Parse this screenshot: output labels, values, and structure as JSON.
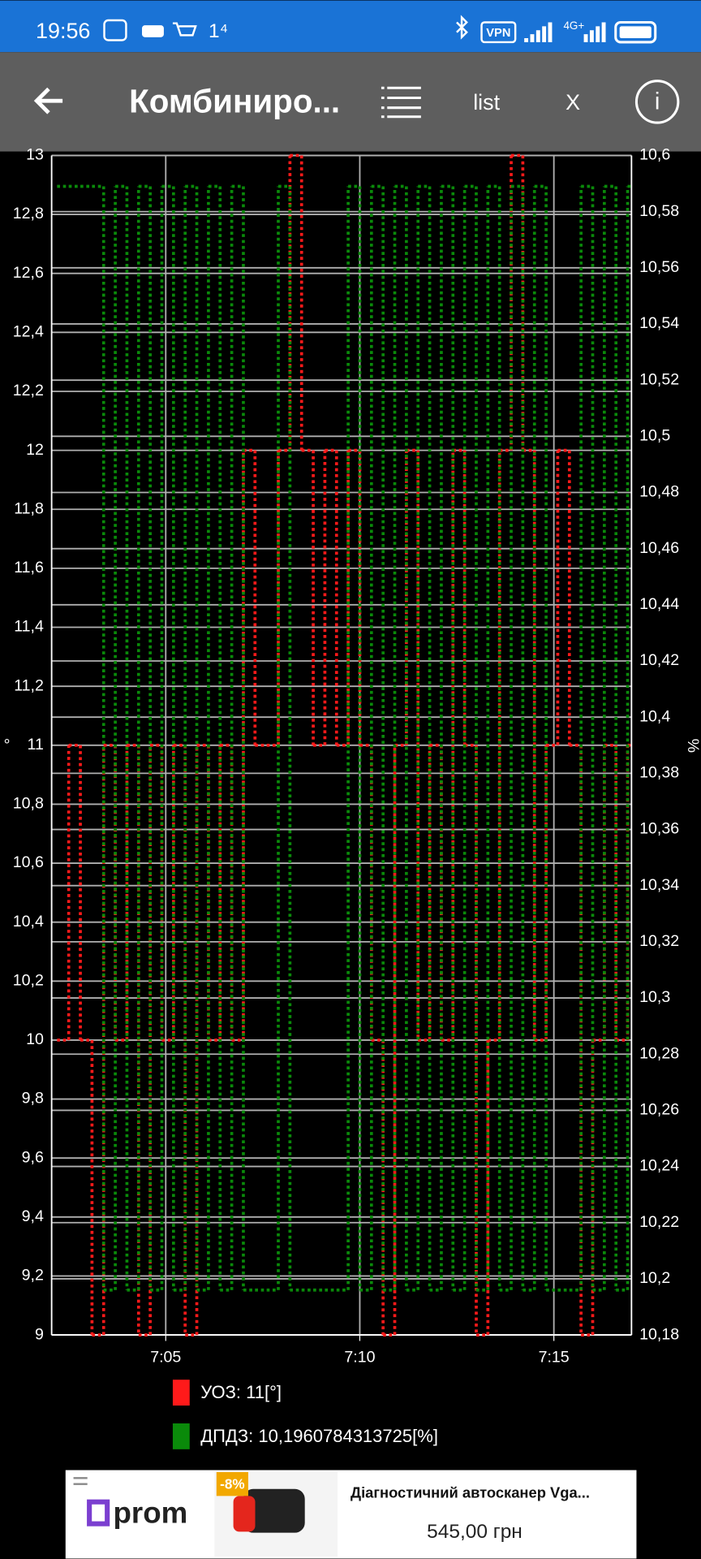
{
  "status_bar": {
    "time": "19:56",
    "notification": "1⁴",
    "vpn": "VPN",
    "network": "4G+"
  },
  "toolbar": {
    "title": "Комбиниро...",
    "list": "list",
    "close": "X",
    "info": "i"
  },
  "ad": {
    "brand": "prom",
    "discount": "-8%",
    "product": "Діагностичний автосканер Vga...",
    "price": "545,00 грн"
  },
  "chart_data": {
    "type": "line",
    "ylabel": "°",
    "y2label": "%",
    "grid": true,
    "x": [
      422.2,
      422.5,
      422.8,
      423.1,
      423.4,
      423.7,
      424.0,
      424.3,
      424.6,
      424.9,
      425.2,
      425.5,
      425.8,
      426.1,
      426.4,
      426.7,
      427.0,
      427.3,
      427.6,
      427.9,
      428.2,
      428.5,
      428.8,
      429.1,
      429.4,
      429.7,
      430.0,
      430.3,
      430.6,
      430.9,
      431.2,
      431.5,
      431.8,
      432.1,
      432.4,
      432.7,
      433.0,
      433.3,
      433.6,
      433.9,
      434.2,
      434.5,
      434.8,
      435.1,
      435.4,
      435.7,
      436.0,
      436.3,
      436.6,
      436.9
    ],
    "xlim": [
      422.06,
      437
    ],
    "xticks": [
      {
        "value": 425,
        "label": "7:05"
      },
      {
        "value": 430,
        "label": "7:10"
      },
      {
        "value": 435,
        "label": "7:15"
      }
    ],
    "ylim": [
      9,
      13
    ],
    "yticks": [
      9,
      {
        "value": 9.2,
        "label": "9,2"
      },
      {
        "value": 9.4,
        "label": "9,4"
      },
      {
        "value": 9.6,
        "label": "9,6"
      },
      {
        "value": 9.8,
        "label": "9,8"
      },
      10,
      {
        "value": 10.2,
        "label": "10,2"
      },
      {
        "value": 10.4,
        "label": "10,4"
      },
      {
        "value": 10.6,
        "label": "10,6"
      },
      {
        "value": 10.8,
        "label": "10,8"
      },
      11,
      {
        "value": 11.2,
        "label": "11,2"
      },
      {
        "value": 11.4,
        "label": "11,4"
      },
      {
        "value": 11.6,
        "label": "11,6"
      },
      {
        "value": 11.8,
        "label": "11,8"
      },
      12,
      {
        "value": 12.2,
        "label": "12,2"
      },
      {
        "value": 12.4,
        "label": "12,4"
      },
      {
        "value": 12.6,
        "label": "12,6"
      },
      {
        "value": 12.8,
        "label": "12,8"
      },
      13
    ],
    "y2lim": [
      10.18,
      10.6
    ],
    "y2ticks": [
      {
        "value": 10.18,
        "label": "10,18"
      },
      {
        "value": 10.2,
        "label": "10,2"
      },
      {
        "value": 10.22,
        "label": "10,22"
      },
      {
        "value": 10.24,
        "label": "10,24"
      },
      {
        "value": 10.26,
        "label": "10,26"
      },
      {
        "value": 10.28,
        "label": "10,28"
      },
      {
        "value": 10.3,
        "label": "10,3"
      },
      {
        "value": 10.32,
        "label": "10,32"
      },
      {
        "value": 10.34,
        "label": "10,34"
      },
      {
        "value": 10.36,
        "label": "10,36"
      },
      {
        "value": 10.38,
        "label": "10,38"
      },
      {
        "value": 10.4,
        "label": "10,4"
      },
      {
        "value": 10.42,
        "label": "10,42"
      },
      {
        "value": 10.44,
        "label": "10,44"
      },
      {
        "value": 10.46,
        "label": "10,46"
      },
      {
        "value": 10.48,
        "label": "10,48"
      },
      {
        "value": 10.5,
        "label": "10,5"
      },
      {
        "value": 10.52,
        "label": "10,52"
      },
      {
        "value": 10.54,
        "label": "10,54"
      },
      {
        "value": 10.56,
        "label": "10,56"
      },
      {
        "value": 10.58,
        "label": "10,58"
      },
      {
        "value": 10.6,
        "label": "10,6"
      }
    ],
    "series": [
      {
        "name": "УОЗ: 11[°]",
        "color": "#ff1a1a",
        "values": [
          10,
          11,
          10,
          9,
          11,
          10,
          11,
          9,
          11,
          10,
          11,
          9,
          11,
          10,
          11,
          10,
          12,
          11,
          11,
          12,
          13,
          12,
          11,
          12,
          11,
          12,
          11,
          10,
          9,
          11,
          12,
          10,
          11,
          10,
          12,
          11,
          9,
          10,
          12,
          13,
          12,
          10,
          11,
          12,
          11,
          9,
          10,
          11,
          10,
          11
        ]
      },
      {
        "name": "ДПДЗ: 10,1960784313725[%]",
        "color": "#0a8a0a",
        "axis": "y2",
        "values": [
          10.589,
          10.589,
          10.589,
          10.589,
          10.196,
          10.589,
          10.196,
          10.589,
          10.196,
          10.589,
          10.196,
          10.589,
          10.196,
          10.589,
          10.196,
          10.589,
          10.196,
          10.196,
          10.196,
          10.589,
          10.196,
          10.196,
          10.196,
          10.196,
          10.196,
          10.589,
          10.196,
          10.589,
          10.196,
          10.589,
          10.196,
          10.589,
          10.196,
          10.589,
          10.196,
          10.589,
          10.196,
          10.589,
          10.196,
          10.589,
          10.196,
          10.589,
          10.196,
          10.196,
          10.196,
          10.589,
          10.196,
          10.589,
          10.196,
          10.589
        ]
      }
    ]
  }
}
